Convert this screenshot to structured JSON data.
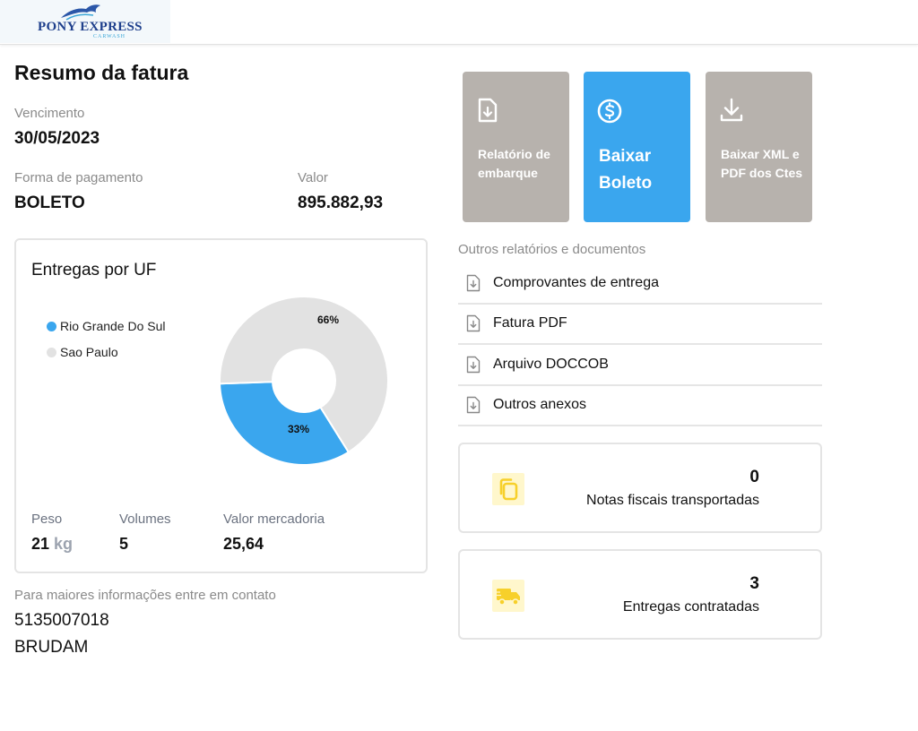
{
  "header": {
    "logo_text": "PONY EXPRESS",
    "logo_sub": "CARWASH"
  },
  "summary": {
    "title": "Resumo da fatura",
    "due_label": "Vencimento",
    "due_value": "30/05/2023",
    "payment_label": "Forma de pagamento",
    "payment_value": "BOLETO",
    "amount_label": "Valor",
    "amount_value": "895.882,93"
  },
  "chart_card": {
    "title": "Entregas por UF",
    "weight_label": "Peso",
    "weight_value": "21",
    "weight_unit": "kg",
    "volumes_label": "Volumes",
    "volumes_value": "5",
    "goods_label": "Valor mercadoria",
    "goods_value": "25,64"
  },
  "chart_data": {
    "type": "pie",
    "title": "Entregas por UF",
    "labels": [
      "Rio Grande Do Sul",
      "Sao Paulo"
    ],
    "values": [
      33,
      66
    ],
    "value_labels": [
      "33%",
      "66%"
    ],
    "colors": [
      "#3aa6ee",
      "#e2e2e2"
    ],
    "legend_placement": "top-left"
  },
  "contact": {
    "label": "Para maiores informações entre em contato",
    "phone": "5135007018",
    "company": "BRUDAM"
  },
  "actions": {
    "report_label": "Relatório de embarque",
    "boleto_label": "Baixar Boleto",
    "xml_label": "Baixar XML e PDF dos Ctes",
    "colors": {
      "gray": "#b7b2ad",
      "blue": "#3aa6ee"
    }
  },
  "documents": {
    "title": "Outros relatórios e documentos",
    "items": [
      {
        "label": "Comprovantes de entrega",
        "icon": "file-download-icon"
      },
      {
        "label": "Fatura PDF",
        "icon": "file-download-icon"
      },
      {
        "label": "Arquivo DOCCOB",
        "icon": "file-download-icon"
      },
      {
        "label": "Outros anexos",
        "icon": "file-download-icon"
      }
    ]
  },
  "stats": {
    "invoices_count": "0",
    "invoices_label": "Notas fiscais transportadas",
    "deliveries_count": "3",
    "deliveries_label": "Entregas contratadas",
    "icon_color": "#f7d02a"
  }
}
